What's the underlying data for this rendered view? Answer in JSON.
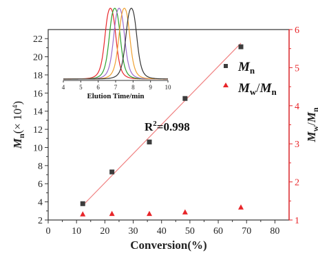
{
  "chart_data": {
    "type": "scatter",
    "x_axis": {
      "title": "Conversion(%)",
      "range": [
        0,
        85
      ],
      "ticks": [
        0,
        10,
        20,
        30,
        40,
        50,
        60,
        70,
        80
      ]
    },
    "y_left": {
      "title_main": "M",
      "title_sub": "n",
      "title_unit_pre": "(× 10",
      "title_unit_exp": "4",
      "title_unit_post": ")",
      "range": [
        2,
        23
      ],
      "ticks": [
        2,
        4,
        6,
        8,
        10,
        12,
        14,
        16,
        18,
        20,
        22
      ]
    },
    "y_right": {
      "title_a": "M",
      "title_a_sub": "w",
      "title_slash": "/",
      "title_b": "M",
      "title_b_sub": "n",
      "range": [
        1,
        6
      ],
      "ticks": [
        1,
        2,
        3,
        4,
        5,
        6
      ],
      "color": "#e8262a"
    },
    "series": [
      {
        "legend_main": "M",
        "legend_sub": "n",
        "axis": "left",
        "marker": "square",
        "color": "#3d3d3d",
        "x": [
          12.2,
          22.5,
          35.7,
          48.3,
          68.0
        ],
        "y": [
          3.8,
          7.3,
          10.6,
          15.4,
          21.1
        ]
      },
      {
        "legend_a": "M",
        "legend_a_sub": "w",
        "legend_slash": "/",
        "legend_b": "M",
        "legend_b_sub": "n",
        "axis": "right",
        "marker": "triangle",
        "color": "#e8262a",
        "x": [
          12.2,
          22.5,
          35.7,
          48.3,
          68.0
        ],
        "y": [
          1.15,
          1.16,
          1.16,
          1.2,
          1.33
        ]
      }
    ],
    "fit_line": {
      "color": "#f08080",
      "x": [
        12.2,
        68.0
      ],
      "y": [
        3.6,
        21.5
      ]
    },
    "annotation": {
      "r_pre": "R",
      "r_exp": "2",
      "r_post": "=0.998"
    },
    "legend_placement": "right",
    "inset": {
      "xlabel": "Elution Time/min",
      "xlim": [
        4,
        10
      ],
      "ticks": [
        4,
        5,
        6,
        7,
        8,
        9,
        10
      ],
      "curves": [
        {
          "peak_time": 6.7,
          "color": "#e8262a"
        },
        {
          "peak_time": 6.95,
          "color": "#2ca02c"
        },
        {
          "peak_time": 7.2,
          "color": "#9a6acb"
        },
        {
          "peak_time": 7.5,
          "color": "#f0a030"
        },
        {
          "peak_time": 7.9,
          "color": "#333333"
        }
      ]
    }
  }
}
